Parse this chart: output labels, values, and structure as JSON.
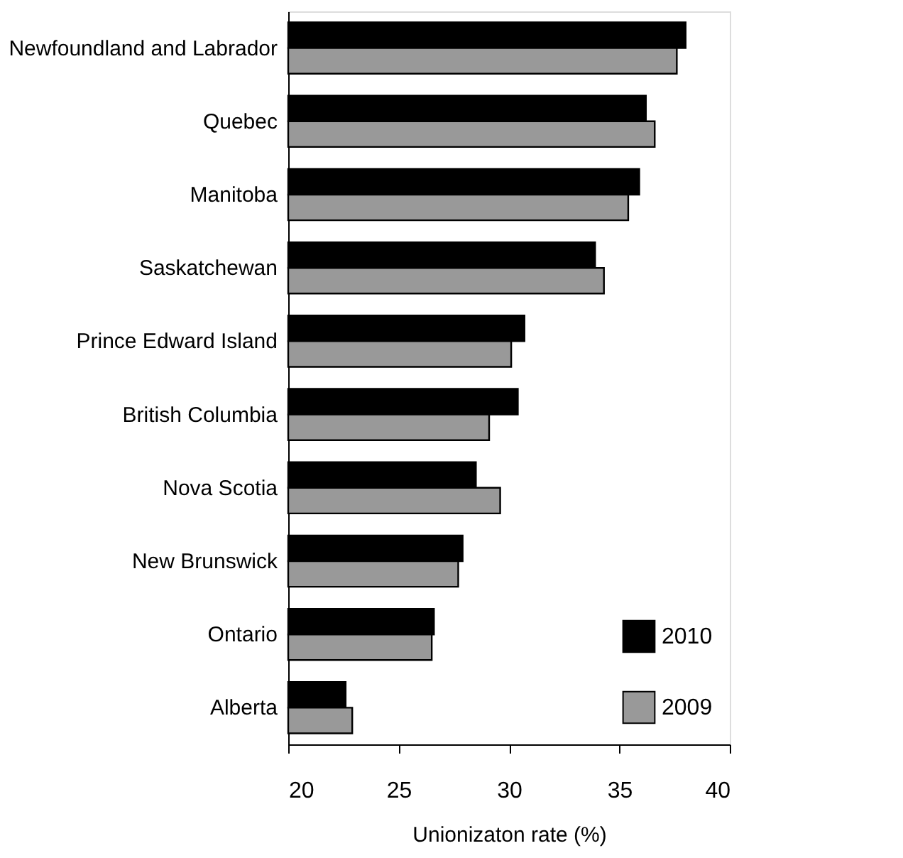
{
  "chart_data": {
    "type": "bar",
    "orientation": "horizontal",
    "xlabel": "Unionizaton rate (%)",
    "categories": [
      "Newfoundland and Labrador",
      "Quebec",
      "Manitoba",
      "Saskatchewan",
      "Prince Edward Island",
      "British Columbia",
      "Nova Scotia",
      "New Brunswick",
      "Ontario",
      "Alberta"
    ],
    "series": [
      {
        "name": "2010",
        "color": "#000000",
        "values": [
          38.0,
          36.2,
          35.9,
          33.9,
          30.7,
          30.4,
          28.5,
          27.9,
          26.6,
          22.6
        ]
      },
      {
        "name": "2009",
        "color": "#999999",
        "values": [
          37.6,
          36.6,
          35.4,
          34.3,
          30.1,
          29.1,
          29.6,
          27.7,
          26.5,
          22.9
        ]
      }
    ],
    "xlim": [
      20,
      40
    ],
    "xticks": [
      20,
      25,
      30,
      35,
      40
    ],
    "grid": false,
    "legend": "bottom right"
  }
}
